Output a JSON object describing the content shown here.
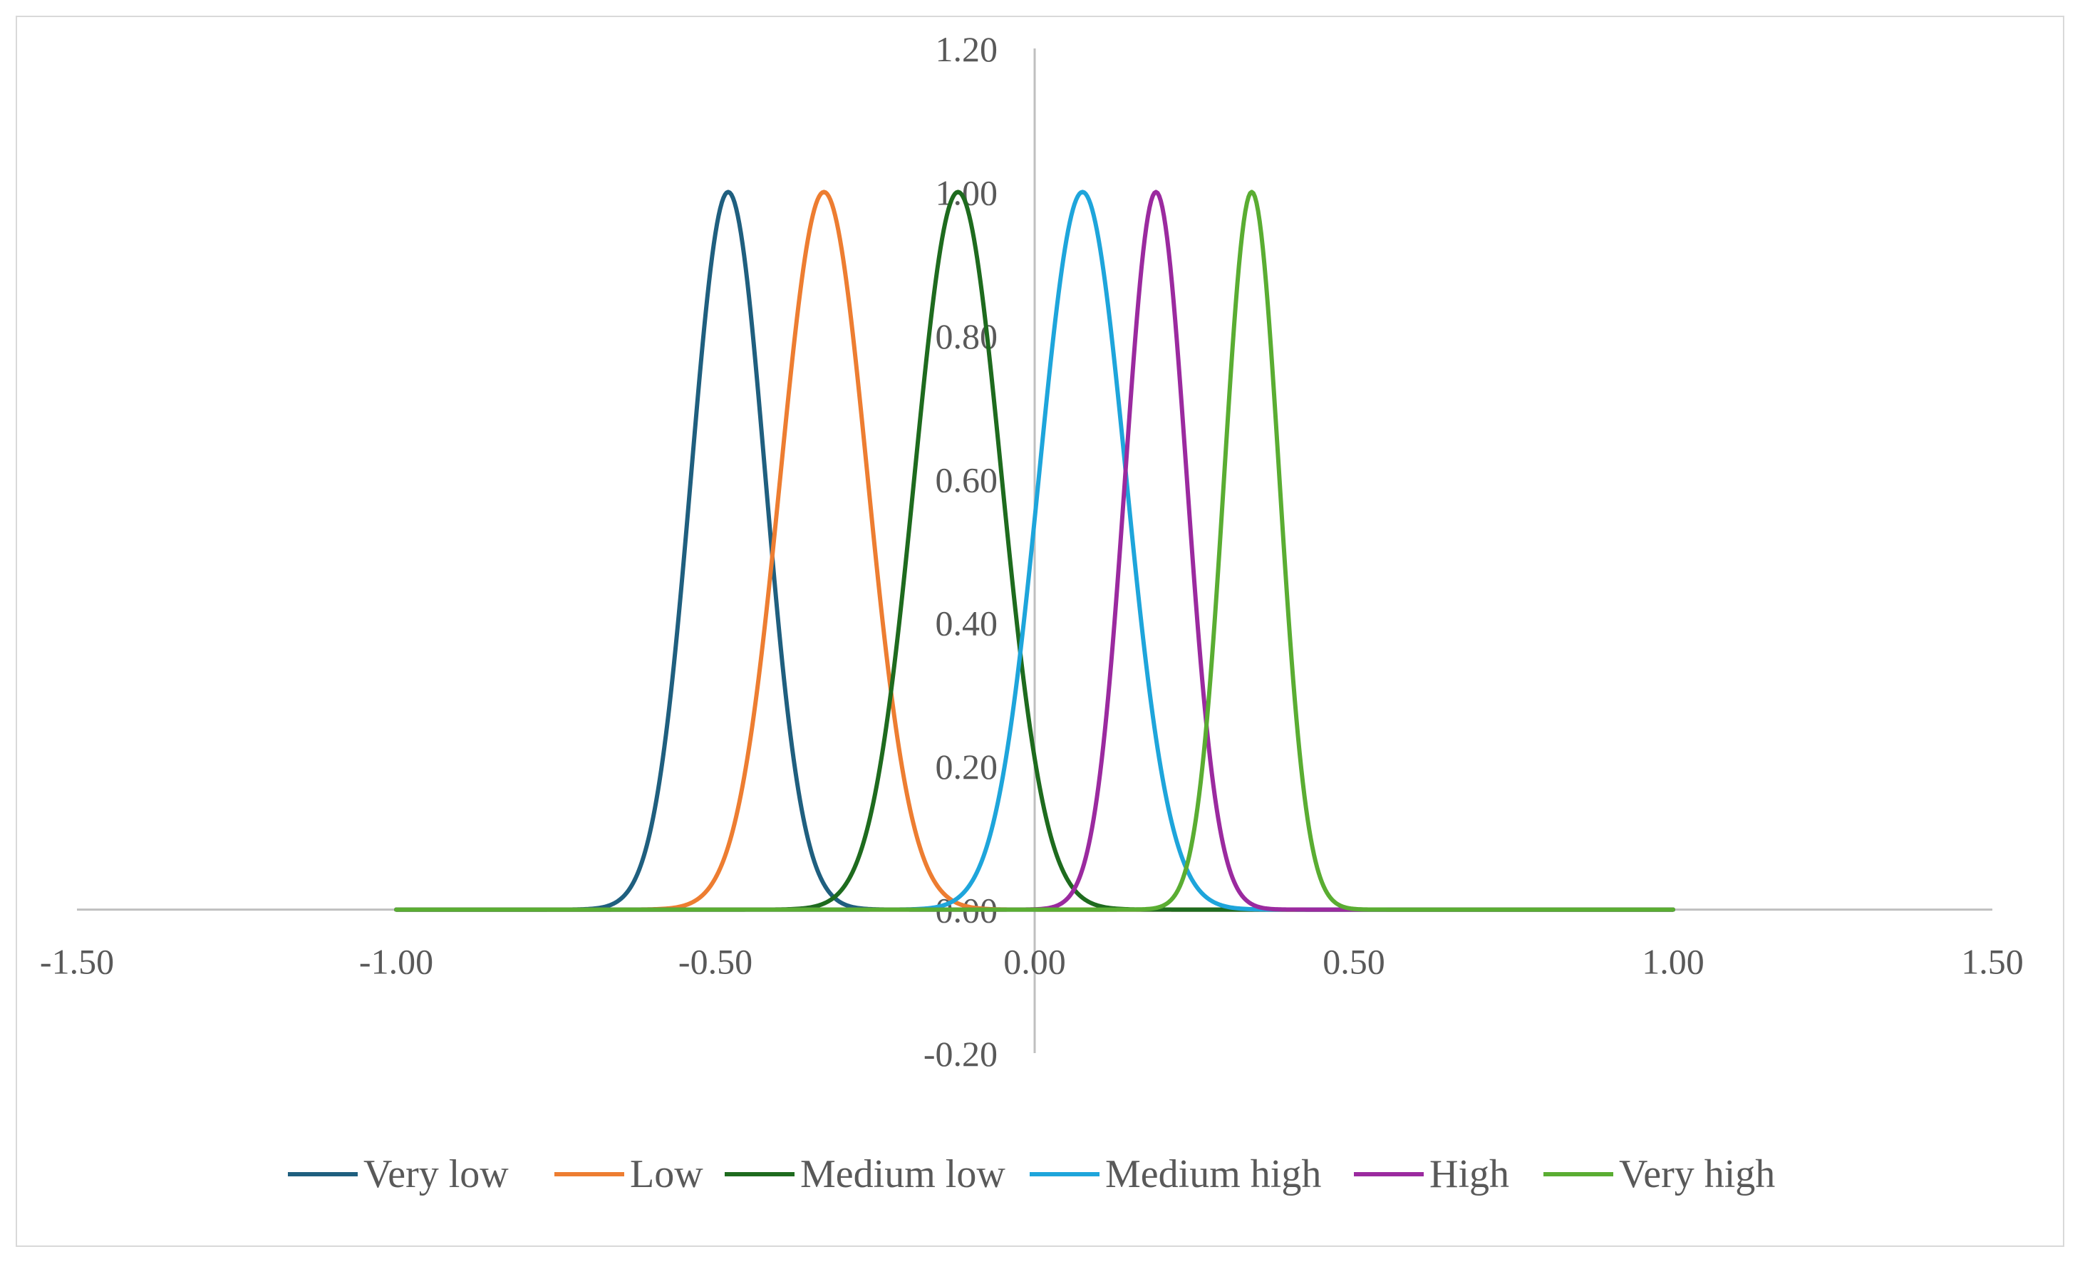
{
  "chart_data": {
    "type": "line",
    "title": "",
    "xlabel": "",
    "ylabel": "",
    "xlim": [
      -1.5,
      1.5
    ],
    "ylim": [
      -0.2,
      1.2
    ],
    "x_ticks": [
      -1.5,
      -1.0,
      -0.5,
      0.0,
      0.5,
      1.0,
      1.5
    ],
    "y_ticks": [
      -0.2,
      0.0,
      0.2,
      0.4,
      0.6,
      0.8,
      1.0,
      1.2
    ],
    "x_tick_labels": [
      "-1.50",
      "-1.00",
      "-0.50",
      "0.00",
      "0.50",
      "1.00",
      "1.50"
    ],
    "y_tick_labels": [
      "-0.20",
      "0.00",
      "0.20",
      "0.40",
      "0.60",
      "0.80",
      "1.00",
      "1.20"
    ],
    "x_range_of_curves": [
      -1.0,
      1.0
    ],
    "grid": false,
    "legend_position": "bottom",
    "series": [
      {
        "name": "Very low",
        "color": "#1f5f7f",
        "peak_x": -0.48,
        "peak_y": 1.0,
        "sigma": 0.058
      },
      {
        "name": "Low",
        "color": "#ed7d31",
        "peak_x": -0.33,
        "peak_y": 1.0,
        "sigma": 0.068
      },
      {
        "name": "Medium low",
        "color": "#1e6b1e",
        "peak_x": -0.12,
        "peak_y": 1.0,
        "sigma": 0.068
      },
      {
        "name": "Medium high",
        "color": "#1ea5db",
        "peak_x": 0.075,
        "peak_y": 1.0,
        "sigma": 0.068
      },
      {
        "name": "High",
        "color": "#9b2a9f",
        "peak_x": 0.19,
        "peak_y": 1.0,
        "sigma": 0.048
      },
      {
        "name": "Very high",
        "color": "#5aad32",
        "peak_x": 0.34,
        "peak_y": 1.0,
        "sigma": 0.043
      }
    ]
  }
}
